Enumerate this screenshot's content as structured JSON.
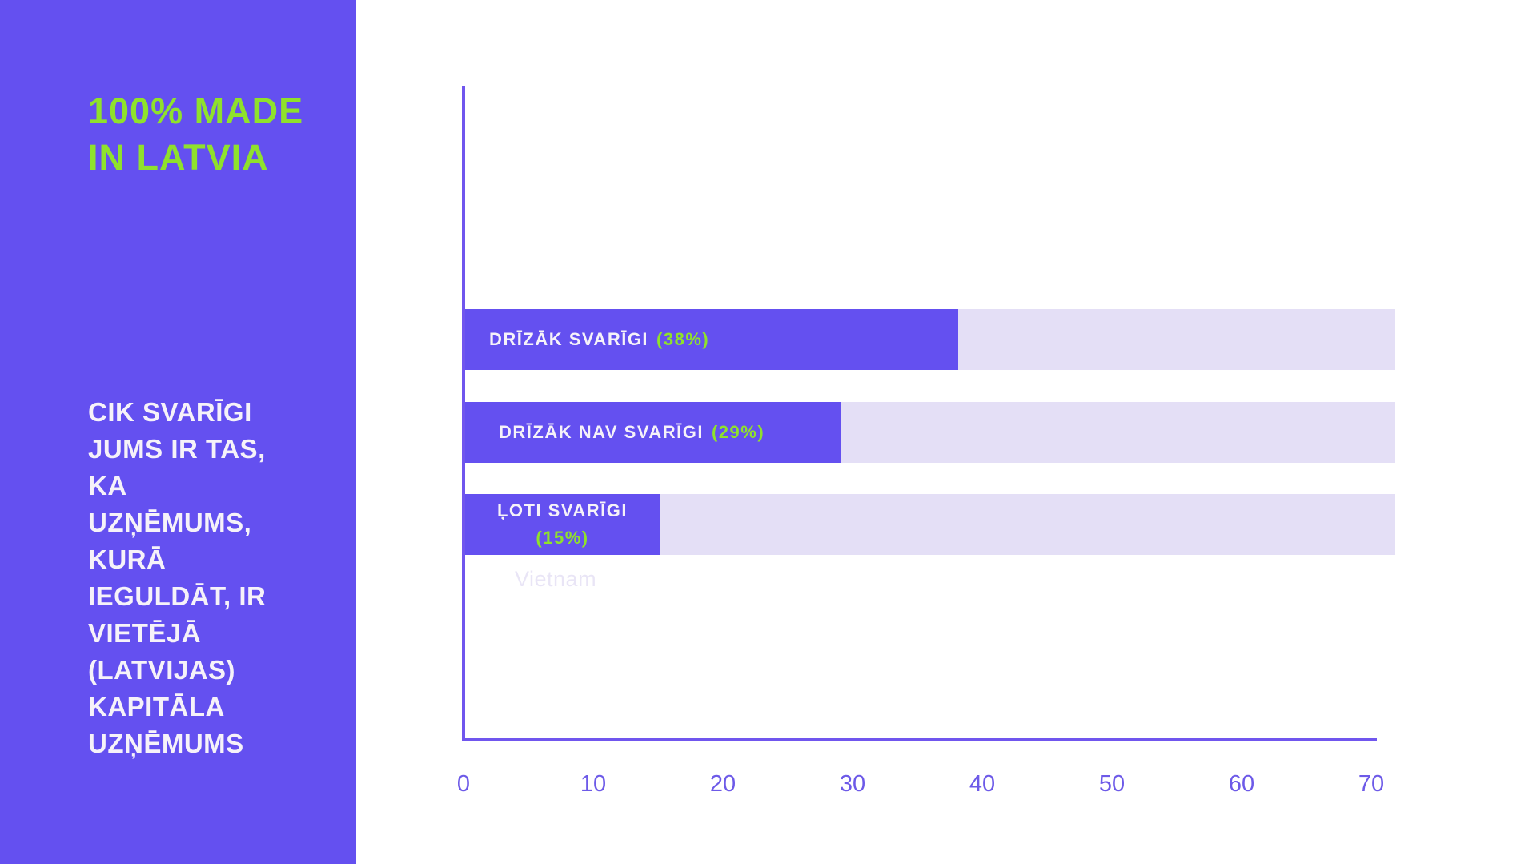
{
  "colors": {
    "purple": "#6450F0",
    "track": "#E4DFF6",
    "green": "#8FE12C",
    "text_light": "#F6F2F9",
    "axis": "#7056EE",
    "tick_label": "#6D5AE8",
    "ghost": "#E9E5F6"
  },
  "sidebar": {
    "heading": "100% MADE\nIN LATVIA",
    "question": "CIK SVARĪGI\nJUMS IR TAS,\nKA\nUZŅĒMUMS,\nKURĀ\nIEGULDĀT, IR\nVIETĒJĀ\n(LATVIJAS)\nKAPITĀLA\nUZŅĒMUMS"
  },
  "chart_data": {
    "type": "bar",
    "orientation": "horizontal",
    "title": "",
    "xlabel": "",
    "ylabel": "",
    "categories": [
      "DRĪZĀK SVARĪGI",
      "DRĪZĀK NAV SVARĪGI",
      "ĻOTI SVARĪGI"
    ],
    "values": [
      38,
      29,
      15
    ],
    "bars": [
      {
        "name": "DRĪZĀK SVARĪGI",
        "pct": "(38%)",
        "value": 38
      },
      {
        "name": "DRĪZĀK NAV SVARĪGI",
        "pct": "(29%)",
        "value": 29
      },
      {
        "name": "ĻOTI SVARĪGI",
        "pct": "(15%)",
        "value": 15
      }
    ],
    "x_ticks": [
      0,
      10,
      20,
      30,
      40,
      50,
      60,
      70
    ],
    "xlim": [
      0,
      70
    ],
    "grid": false,
    "legend": false,
    "ghost_label": "Vietnam"
  }
}
